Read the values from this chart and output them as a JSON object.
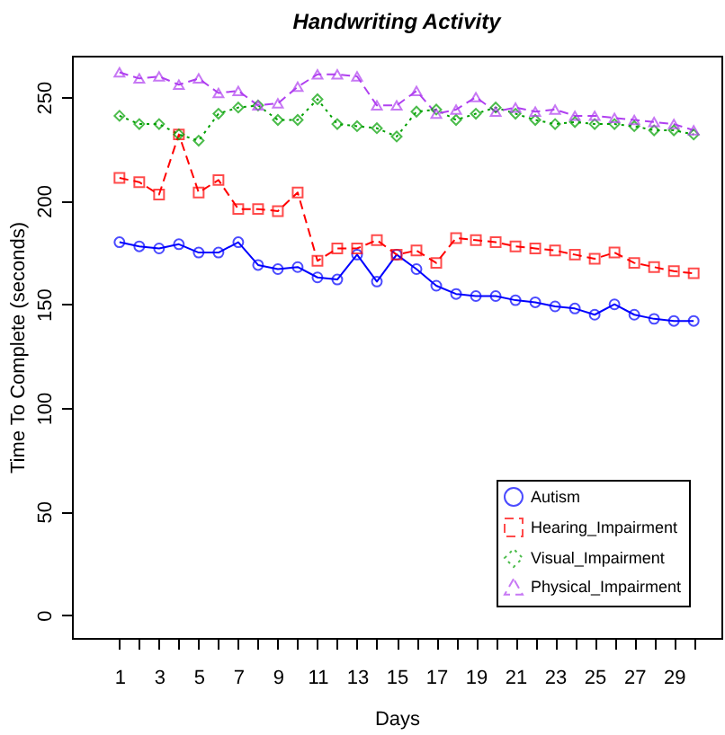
{
  "chart_data": {
    "type": "line",
    "title": "Handwriting Activity",
    "xlabel": "Days",
    "ylabel": "Time To Complete (seconds)",
    "x": [
      1,
      2,
      3,
      4,
      5,
      6,
      7,
      8,
      9,
      10,
      11,
      12,
      13,
      14,
      15,
      16,
      17,
      18,
      19,
      20,
      21,
      22,
      23,
      24,
      25,
      26,
      27,
      28,
      29,
      30
    ],
    "series": [
      {
        "name": "Autism",
        "color": "#0000ff",
        "marker": "circle",
        "line_style": "solid",
        "values": [
          180,
          178,
          177,
          179,
          175,
          175,
          180,
          169,
          167,
          168,
          163,
          162,
          174,
          161,
          174,
          167,
          159,
          155,
          154,
          154,
          152,
          151,
          149,
          148,
          145,
          150,
          145,
          143,
          142,
          142
        ]
      },
      {
        "name": "Hearing_Impairment",
        "color": "#ff0000",
        "marker": "square",
        "line_style": "dashed",
        "values": [
          211,
          209,
          203,
          232,
          204,
          210,
          196,
          196,
          195,
          204,
          171,
          177,
          177,
          181,
          174,
          176,
          170,
          182,
          181,
          180,
          178,
          177,
          176,
          174,
          172,
          175,
          170,
          168,
          166,
          165
        ]
      },
      {
        "name": "Visual_Impairment",
        "color": "#00a000",
        "marker": "diamond",
        "line_style": "dotted",
        "values": [
          241,
          237,
          237,
          232,
          229,
          242,
          245,
          246,
          239,
          239,
          249,
          237,
          236,
          235,
          231,
          243,
          244,
          239,
          242,
          245,
          242,
          239,
          237,
          238,
          237,
          237,
          236,
          234,
          234,
          232
        ]
      },
      {
        "name": "Physical_Impairment",
        "color": "#b040f0",
        "marker": "triangle",
        "line_style": "dashed",
        "values": [
          262,
          259,
          260,
          256,
          259,
          252,
          253,
          246,
          247,
          255,
          261,
          261,
          260,
          246,
          246,
          253,
          242,
          244,
          250,
          243,
          245,
          243,
          244,
          241,
          241,
          240,
          239,
          238,
          237,
          234
        ]
      }
    ],
    "xlim": [
      -1.4,
      31.4
    ],
    "ylim": [
      -11,
      270
    ],
    "xticks": [
      1,
      {
        "value": 2,
        "label": null
      },
      3,
      {
        "value": 4,
        "label": null
      },
      5,
      {
        "value": 6,
        "label": null
      },
      7,
      {
        "value": 8,
        "label": null
      },
      9,
      {
        "value": 10,
        "label": null
      },
      11,
      {
        "value": 12,
        "label": null
      },
      13,
      {
        "value": 14,
        "label": null
      },
      15,
      {
        "value": 16,
        "label": null
      },
      17,
      {
        "value": 18,
        "label": null
      },
      19,
      {
        "value": 20,
        "label": null
      },
      21,
      {
        "value": 22,
        "label": null
      },
      23,
      {
        "value": 24,
        "label": null
      },
      25,
      {
        "value": 26,
        "label": null
      },
      27,
      {
        "value": 28,
        "label": null
      },
      29,
      {
        "value": 30,
        "label": null
      }
    ],
    "yticks": [
      0,
      50,
      100,
      150,
      200,
      250
    ],
    "legend": "bottom right",
    "grid": false
  }
}
